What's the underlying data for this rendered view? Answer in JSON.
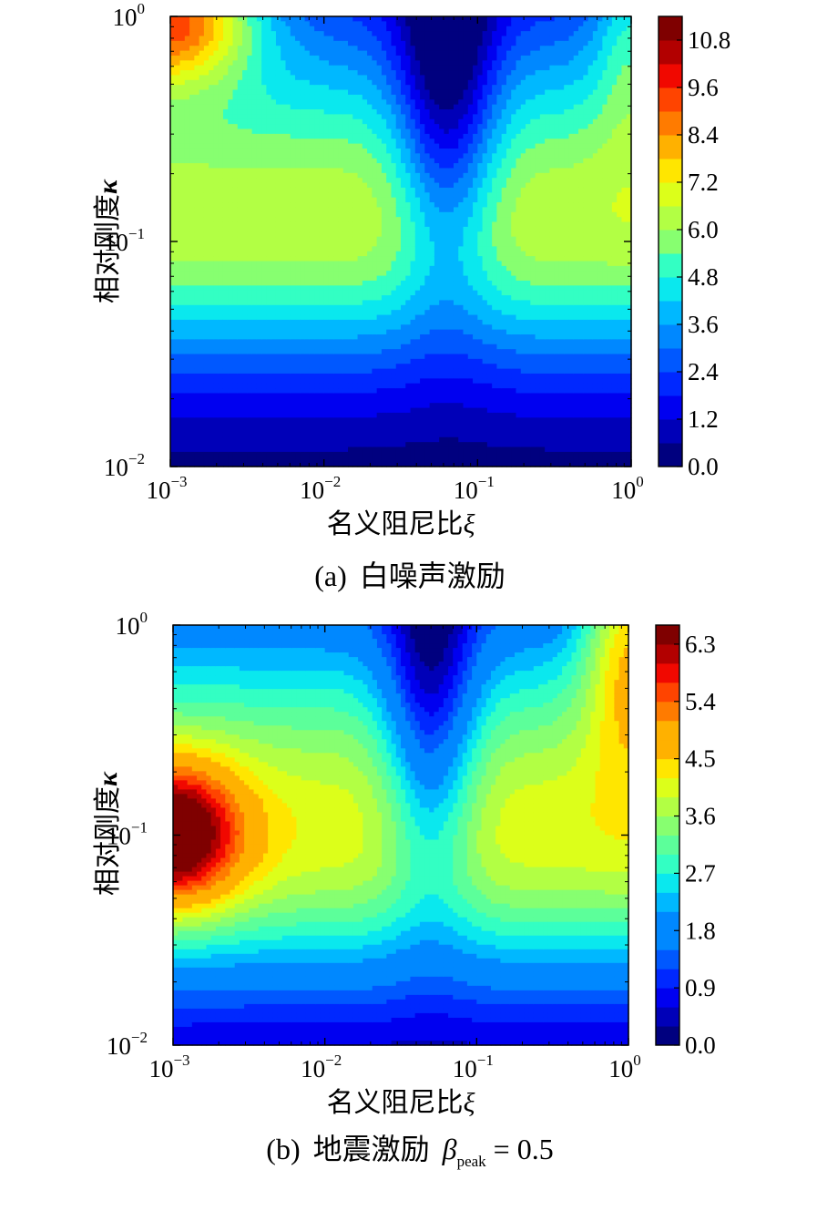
{
  "figure": {
    "colors": [
      "#00007f",
      "#0000b8",
      "#0000f0",
      "#0028ff",
      "#0058ff",
      "#0088ff",
      "#00b8ff",
      "#0ae8ee",
      "#33ffc3",
      "#5cff9a",
      "#87ff70",
      "#b2ff44",
      "#dcff1a",
      "#ffe600",
      "#ffb100",
      "#ff7b00",
      "#ff4400",
      "#f10800",
      "#b20000",
      "#7f0000"
    ]
  },
  "chart_data": [
    {
      "type": "heatmap",
      "panel": "a",
      "caption_label": "(a)",
      "caption_text": "白噪声激励",
      "xlabel": "名义阻尼比",
      "xlabel_symbol": "ξ",
      "ylabel": "相对刚度",
      "ylabel_symbol": "κ",
      "x_scale": "log",
      "y_scale": "log",
      "xlim": [
        0.001,
        1
      ],
      "ylim": [
        0.01,
        1
      ],
      "x_ticks": [
        {
          "base": "10",
          "exp": "−3"
        },
        {
          "base": "10",
          "exp": "−2"
        },
        {
          "base": "10",
          "exp": "−1"
        },
        {
          "base": "10",
          "exp": "0"
        }
      ],
      "y_ticks": [
        {
          "base": "10",
          "exp": "−2"
        },
        {
          "base": "10",
          "exp": "−1"
        },
        {
          "base": "10",
          "exp": "0"
        }
      ],
      "levels": {
        "min": 0,
        "max": 11.4,
        "step": 0.6
      },
      "colorbar_ticks": [
        "0.0",
        "1.2",
        "2.4",
        "3.6",
        "4.8",
        "6.0",
        "7.2",
        "8.4",
        "9.6",
        "10.8"
      ],
      "z_model": [
        {
          "kind": "const",
          "a": -0.3
        },
        {
          "kind": "kappa_exp",
          "a": 7.0,
          "k0": 0.034,
          "w": 0.6
        },
        {
          "kind": "corner",
          "a": 7.0,
          "x0": -3,
          "xs": 0.55,
          "y0": 0,
          "ys": 0.3
        },
        {
          "kind": "right",
          "a": 2.2,
          "x0": 0,
          "xs": 0.25,
          "y0": 0,
          "ys": 0.55
        },
        {
          "kind": "valley",
          "a": -4.2,
          "x0": -1.2,
          "xs": 0.32,
          "y0": -0.35,
          "ys": 0.85
        }
      ]
    },
    {
      "type": "heatmap",
      "panel": "b",
      "caption_label": "(b)",
      "caption_text": "地震激励",
      "caption_symbol": "β",
      "caption_subscript": "peak",
      "caption_value": "= 0.5",
      "xlabel": "名义阻尼比",
      "xlabel_symbol": "ξ",
      "ylabel": "相对刚度",
      "ylabel_symbol": "κ",
      "x_scale": "log",
      "y_scale": "log",
      "xlim": [
        0.001,
        1
      ],
      "ylim": [
        0.01,
        1
      ],
      "x_ticks": [
        {
          "base": "10",
          "exp": "−3"
        },
        {
          "base": "10",
          "exp": "−2"
        },
        {
          "base": "10",
          "exp": "−1"
        },
        {
          "base": "10",
          "exp": "0"
        }
      ],
      "y_ticks": [
        {
          "base": "10",
          "exp": "−2"
        },
        {
          "base": "10",
          "exp": "−1"
        },
        {
          "base": "10",
          "exp": "0"
        }
      ],
      "levels": {
        "min": 0,
        "max": 6.6,
        "step": 0.3
      },
      "colorbar_ticks": [
        "0.0",
        "0.9",
        "1.8",
        "2.7",
        "3.6",
        "4.5",
        "5.4",
        "6.3"
      ],
      "z_model": [
        {
          "kind": "const",
          "a": -0.1
        },
        {
          "kind": "kappa_exp",
          "a": 4.2,
          "k0": 0.02,
          "w": 0.65
        },
        {
          "kind": "corner",
          "a": 3.2,
          "x0": -3,
          "xs": 0.45,
          "y0": -1,
          "ys": 0.35
        },
        {
          "kind": "right",
          "a": 2.5,
          "x0": 0,
          "xs": 0.3,
          "y0": 0,
          "ys": 0.6
        },
        {
          "kind": "valley",
          "a": -2.2,
          "x0": -1.3,
          "xs": 0.3,
          "y0": -0.4,
          "ys": 0.9
        }
      ]
    }
  ]
}
